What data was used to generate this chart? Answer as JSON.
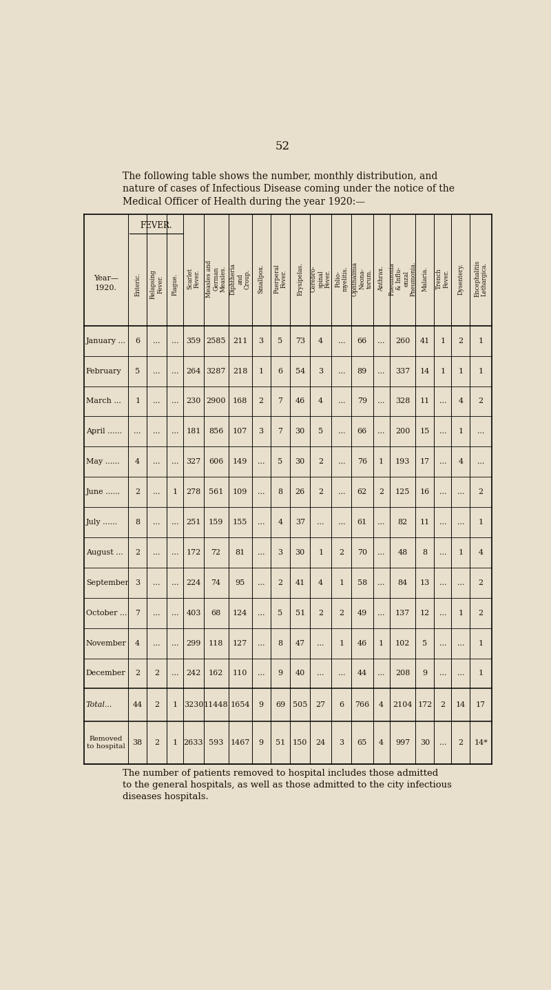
{
  "page_number": "52",
  "intro_text": [
    "The following table shows the number, monthly distribution, and",
    "nature of cases of Infectious Disease coming under the notice of the",
    "Medical Officer of Health during the year 1920:—"
  ],
  "footer_text": [
    "The number of patients removed to hospital includes those admitted",
    "to the general hospitals, as well as those admitted to the city infectious",
    "diseases hospitals."
  ],
  "bg_color": "#e8e0cc",
  "text_color": "#1a1008",
  "col_labels": [
    "Year—\n1920.",
    "Enteric.",
    "Relapsing\nFever.",
    "Plague.",
    "Scarlet\nFever.",
    "Measles and\nGerman\nMeasles.",
    "Diphtheria\nand\nCroup.",
    "Smallpox.",
    "Puerperal\nFever.",
    "Erysipelas.",
    "Cerebro-\nspinal\nFever.",
    "Polio-\nmyelitis.",
    "Ophthalmia\nNeona-\ntorum.",
    "Anthrax.",
    "Pneumonia\n& Influ-\nenzal\nPneumonia.",
    "Malaria.",
    "Trench\nFever.",
    "Dysentery.",
    "Encephalitis\nLethargica."
  ],
  "fever_label": "FEVER.",
  "rows": [
    [
      "January ...",
      "6",
      "...",
      "...",
      "359",
      "2585",
      "211",
      "3",
      "5",
      "73",
      "4",
      "...",
      "66",
      "...",
      "260",
      "41",
      "1",
      "2",
      "1"
    ],
    [
      "February",
      "5",
      "...",
      "...",
      "264",
      "3287",
      "218",
      "1",
      "6",
      "54",
      "3",
      "...",
      "89",
      "...",
      "337",
      "14",
      "1",
      "1",
      "1"
    ],
    [
      "March ...",
      "1",
      "...",
      "...",
      "230",
      "2900",
      "168",
      "2",
      "7",
      "46",
      "4",
      "...",
      "79",
      "...",
      "328",
      "11",
      "...",
      "4",
      "2"
    ],
    [
      "April ......",
      "...",
      "...",
      "...",
      "181",
      "856",
      "107",
      "3",
      "7",
      "30",
      "5",
      "...",
      "66",
      "...",
      "200",
      "15",
      "...",
      "1",
      "..."
    ],
    [
      "May ......",
      "4",
      "...",
      "...",
      "327",
      "606",
      "149",
      "...",
      "5",
      "30",
      "2",
      "...",
      "76",
      "1",
      "193",
      "17",
      "...",
      "4",
      "..."
    ],
    [
      "June ......",
      "2",
      "...",
      "1",
      "278",
      "561",
      "109",
      "...",
      "8",
      "26",
      "2",
      "...",
      "62",
      "2",
      "125",
      "16",
      "...",
      "...",
      "2"
    ],
    [
      "July ......",
      "8",
      "...",
      "...",
      "251",
      "159",
      "155",
      "...",
      "4",
      "37",
      "...",
      "...",
      "61",
      "...",
      "82",
      "11",
      "...",
      "...",
      "1"
    ],
    [
      "August ...",
      "2",
      "...",
      "...",
      "172",
      "72",
      "81",
      "...",
      "3",
      "30",
      "1",
      "2",
      "70",
      "...",
      "48",
      "8",
      "...",
      "1",
      "4"
    ],
    [
      "September",
      "3",
      "...",
      "...",
      "224",
      "74",
      "95",
      "...",
      "2",
      "41",
      "4",
      "1",
      "58",
      "...",
      "84",
      "13",
      "...",
      "...",
      "2"
    ],
    [
      "October ...",
      "7",
      "...",
      "...",
      "403",
      "68",
      "124",
      "...",
      "5",
      "51",
      "2",
      "2",
      "49",
      "...",
      "137",
      "12",
      "...",
      "1",
      "2"
    ],
    [
      "November",
      "4",
      "...",
      "...",
      "299",
      "118",
      "127",
      "...",
      "8",
      "47",
      "...",
      "1",
      "46",
      "1",
      "102",
      "5",
      "...",
      "...",
      "1"
    ],
    [
      "December",
      "2",
      "2",
      "...",
      "242",
      "162",
      "110",
      "...",
      "9",
      "40",
      "...",
      "...",
      "44",
      "...",
      "208",
      "9",
      "...",
      "...",
      "1"
    ],
    [
      "Total...",
      "44",
      "2",
      "1",
      "3230",
      "11448",
      "1654",
      "9",
      "69",
      "505",
      "27",
      "6",
      "766",
      "4",
      "2104",
      "172",
      "2",
      "14",
      "17"
    ],
    [
      "Removed\nto hospital",
      "38",
      "2",
      "1",
      "2633",
      "593",
      "1467",
      "9",
      "51",
      "150",
      "24",
      "3",
      "65",
      "4",
      "997",
      "30",
      "...",
      "2",
      "14*"
    ]
  ]
}
